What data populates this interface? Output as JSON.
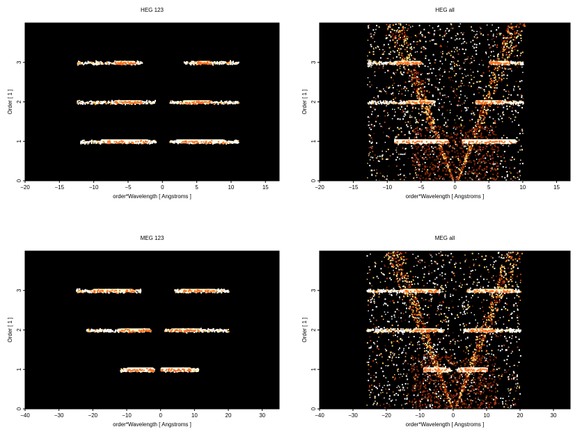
{
  "chart_data": [
    {
      "type": "heatmap",
      "title": "HEG 123",
      "xlabel": "order*Wavelength [ Angstroms ]",
      "ylabel": "Order [ 1 ]",
      "xlim": [
        -20,
        17
      ],
      "ylim": [
        0,
        4
      ],
      "xticks": [
        -20,
        -15,
        -10,
        -5,
        0,
        5,
        10,
        15
      ],
      "yticks": [
        0,
        1,
        2,
        3
      ],
      "background": "#000000",
      "grid": false,
      "orders": [
        {
          "order": 1,
          "segments": [
            [
              -12,
              -1
            ],
            [
              1,
              11
            ]
          ],
          "core": [
            [
              -9,
              -2
            ],
            [
              2,
              9
            ]
          ],
          "intensity": 0.9
        },
        {
          "order": 2,
          "segments": [
            [
              -12.5,
              -1
            ],
            [
              1,
              11
            ]
          ],
          "core": [
            [
              -7,
              -3
            ],
            [
              3,
              7
            ]
          ],
          "intensity": 0.6
        },
        {
          "order": 3,
          "segments": [
            [
              -12.5,
              -3
            ],
            [
              3,
              11
            ]
          ],
          "core": [
            [
              -7,
              -4
            ],
            [
              5,
              7
            ]
          ],
          "intensity": 0.5
        }
      ]
    },
    {
      "type": "heatmap",
      "title": "HEG all",
      "xlabel": "order*Wavelength [ Angstroms ]",
      "ylabel": "Order [ 1 ]",
      "xlim": [
        -20,
        17
      ],
      "ylim": [
        0,
        4
      ],
      "xticks": [
        -20,
        -15,
        -10,
        -5,
        0,
        5,
        10,
        15
      ],
      "yticks": [
        0,
        1,
        2,
        3
      ],
      "background": "#000000",
      "grid": false,
      "orders": [
        {
          "order": 1,
          "segments": [
            [
              -9,
              -1
            ],
            [
              1,
              9
            ]
          ],
          "core": [
            [
              -9,
              -1
            ],
            [
              1,
              9
            ]
          ],
          "intensity": 1.0
        },
        {
          "order": 2,
          "segments": [
            [
              -13,
              -3
            ],
            [
              3,
              10
            ]
          ],
          "core": [
            [
              -7,
              -3
            ],
            [
              3,
              7
            ]
          ],
          "intensity": 0.6
        },
        {
          "order": 3,
          "segments": [
            [
              -13,
              -5
            ],
            [
              5,
              10
            ]
          ],
          "core": [
            [
              -9,
              -5
            ],
            [
              5,
              8
            ]
          ],
          "intensity": 0.5
        }
      ],
      "background_events": {
        "x_range": [
          -13,
          10
        ],
        "wedge": true
      }
    },
    {
      "type": "heatmap",
      "title": "MEG 123",
      "xlabel": "order*Wavelength [ Angstroms ]",
      "ylabel": "Order [ 1 ]",
      "xlim": [
        -40,
        35
      ],
      "ylim": [
        0,
        4
      ],
      "xticks": [
        -40,
        -30,
        -20,
        -10,
        0,
        10,
        20,
        30
      ],
      "yticks": [
        0,
        1,
        2,
        3
      ],
      "background": "#000000",
      "grid": false,
      "orders": [
        {
          "order": 1,
          "segments": [
            [
              -12,
              -2
            ],
            [
              0,
              11
            ]
          ],
          "core": [
            [
              -10,
              -2
            ],
            [
              0,
              9
            ]
          ],
          "intensity": 0.9
        },
        {
          "order": 2,
          "segments": [
            [
              -22,
              -3
            ],
            [
              1,
              20
            ]
          ],
          "core": [
            [
              -12,
              -3
            ],
            [
              3,
              12
            ]
          ],
          "intensity": 0.5
        },
        {
          "order": 3,
          "segments": [
            [
              -25,
              -6
            ],
            [
              4,
              20
            ]
          ],
          "core": [
            [
              -20,
              -8
            ],
            [
              6,
              16
            ]
          ],
          "intensity": 0.6
        }
      ]
    },
    {
      "type": "heatmap",
      "title": "MEG all",
      "xlabel": "order*Wavelength [ Angstroms ]",
      "ylabel": "Order [ 1 ]",
      "xlim": [
        -40,
        35
      ],
      "ylim": [
        0,
        4
      ],
      "xticks": [
        -40,
        -30,
        -20,
        -10,
        0,
        10,
        20,
        30
      ],
      "yticks": [
        0,
        1,
        2,
        3
      ],
      "background": "#000000",
      "grid": false,
      "orders": [
        {
          "order": 1,
          "segments": [
            [
              -9,
              -1
            ],
            [
              1,
              10
            ]
          ],
          "core": [
            [
              -9,
              -2
            ],
            [
              2,
              10
            ]
          ],
          "intensity": 1.0
        },
        {
          "order": 2,
          "segments": [
            [
              -26,
              -3
            ],
            [
              3,
              20
            ]
          ],
          "core": [
            [
              -12,
              -5
            ],
            [
              5,
              12
            ]
          ],
          "intensity": 0.6
        },
        {
          "order": 3,
          "segments": [
            [
              -26,
              -4
            ],
            [
              4,
              20
            ]
          ],
          "core": [
            [
              -15,
              -5
            ],
            [
              6,
              18
            ]
          ],
          "intensity": 0.6
        }
      ],
      "background_events": {
        "x_range": [
          -26,
          20
        ],
        "wedge": true
      }
    }
  ]
}
